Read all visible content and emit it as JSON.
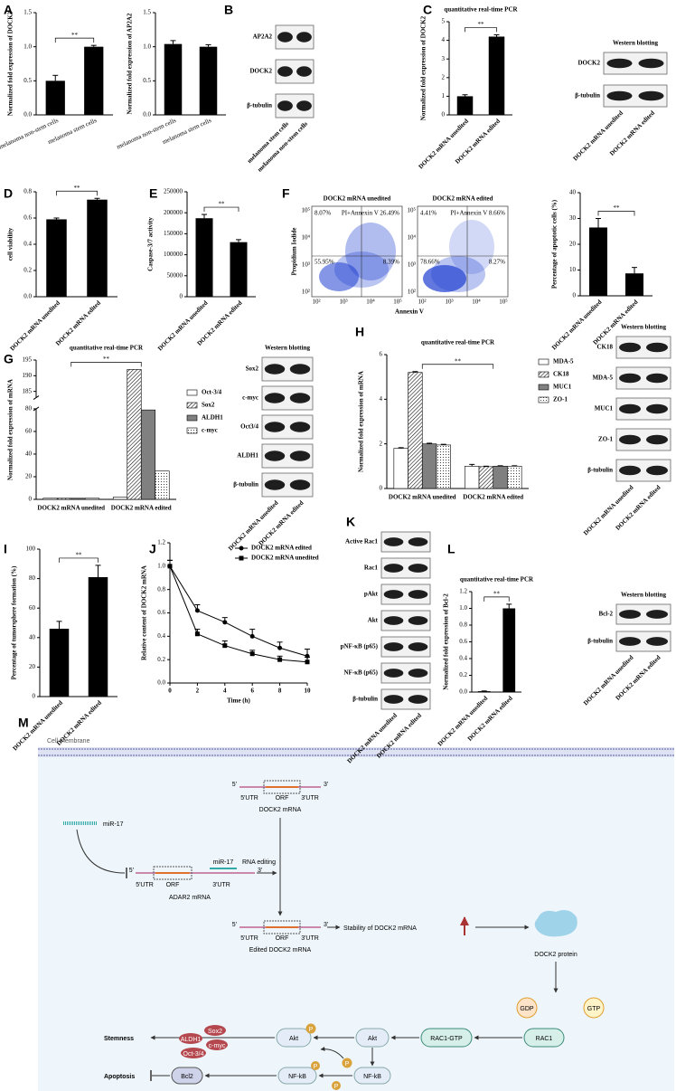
{
  "panel_labels": [
    "A",
    "B",
    "C",
    "D",
    "E",
    "F",
    "G",
    "H",
    "I",
    "J",
    "K",
    "L",
    "M"
  ],
  "chart_data": [
    {
      "type": "bar",
      "ylabel": "Normalized fold expression of DOCK2",
      "categories": [
        "melanoma non-stem cells",
        "melanoma stem cells"
      ],
      "values": [
        0.5,
        1.0
      ],
      "errors": [
        0.08,
        0.02
      ],
      "color": "#000000",
      "ylim": [
        0,
        1.5
      ],
      "yticks": [
        {
          "value": 0,
          "label": "0.0"
        },
        0.5,
        {
          "value": 1,
          "label": "1.0"
        },
        1.5
      ],
      "significance": "**"
    },
    {
      "type": "bar",
      "ylabel": "Normalized fold expression of AP2A2",
      "categories": [
        "melanoma non-stem cells",
        "melanoma stem cells"
      ],
      "values": [
        1.04,
        1.0
      ],
      "errors": [
        0.05,
        0.03
      ],
      "color": "#000000",
      "ylim": [
        0,
        1.5
      ],
      "yticks": [
        {
          "value": 0,
          "label": "0.0"
        },
        0.5,
        {
          "value": 1,
          "label": "1.0"
        },
        1.5
      ]
    },
    {
      "type": "bar",
      "title": "quantitative real-time PCR",
      "ylabel": "Normalized fold expression of DOCK2",
      "categories": [
        "DOCK2 mRNA unedited",
        "DOCK2 mRNA edited"
      ],
      "values": [
        1.0,
        4.2
      ],
      "errors": [
        0.08,
        0.1
      ],
      "color": "#000000",
      "ylim": [
        0,
        5
      ],
      "yticks": [
        0,
        1,
        2,
        3,
        4,
        5
      ],
      "significance": "**"
    },
    {
      "type": "bar",
      "ylabel": "cell viability",
      "categories": [
        "DOCK2 mRNA unedited",
        "DOCK2 mRNA edited"
      ],
      "values": [
        0.59,
        0.74
      ],
      "errors": [
        0.01,
        0.01
      ],
      "color": "#000000",
      "ylim": [
        0,
        0.8
      ],
      "yticks": [
        {
          "value": 0,
          "label": "0.0"
        },
        0.2,
        0.4,
        0.6,
        0.8
      ],
      "significance": "**"
    },
    {
      "type": "bar",
      "ylabel": "Caspase-3/7 activity",
      "categories": [
        "DOCK2 mRNA unedited",
        "DOCK2 mRNA edited"
      ],
      "values": [
        187000,
        130000
      ],
      "errors": [
        9000,
        6000
      ],
      "color": "#000000",
      "ylim": [
        0,
        250000
      ],
      "yticks": [
        0,
        50000,
        100000,
        150000,
        200000,
        250000
      ],
      "significance": "**"
    },
    {
      "type": "bar",
      "ylabel": "Percentage of apoptotic cells (%)",
      "categories": [
        "DOCK2 mRNA unedited",
        "DOCK2 mRNA edited"
      ],
      "values": [
        26.5,
        8.7
      ],
      "errors": [
        3.5,
        2.3
      ],
      "color": "#000000",
      "ylim": [
        0,
        40
      ],
      "yticks": [
        0,
        10,
        20,
        30,
        40
      ],
      "significance": "**"
    },
    {
      "type": "grouped_bar",
      "title": "quantitative real-time PCR",
      "ylabel": "Normalized fold expression of mRNA",
      "categories": [
        "DOCK2 mRNA unedited",
        "DOCK2 mRNA edited"
      ],
      "series": [
        {
          "name": "Oct-3/4",
          "color": "#ffffff",
          "pattern": "none",
          "values": [
            1,
            2
          ]
        },
        {
          "name": "Sox2",
          "color": "#ffffff",
          "pattern": "hatch",
          "values": [
            1,
            192
          ]
        },
        {
          "name": "ALDH1",
          "color": "#808080",
          "pattern": "none",
          "values": [
            1,
            79
          ]
        },
        {
          "name": "c-myc",
          "color": "#ffffff",
          "pattern": "dots",
          "values": [
            1,
            25
          ]
        }
      ],
      "ylim": [
        0,
        195
      ],
      "ybreak": [
        80,
        183
      ],
      "yticks": [
        0,
        20,
        40,
        60,
        80,
        185,
        190,
        195
      ],
      "significance": "**"
    },
    {
      "type": "grouped_bar",
      "title": "quantitative real-time PCR",
      "ylabel": "Normalized fold expression of mRNA",
      "categories": [
        "DOCK2 mRNA unedited",
        "DOCK2 mRNA edited"
      ],
      "series": [
        {
          "name": "MDA-5",
          "color": "#ffffff",
          "pattern": "none",
          "values": [
            1.8,
            1.0
          ],
          "errors": [
            0.03,
            0.08
          ]
        },
        {
          "name": "CK18",
          "color": "#ffffff",
          "pattern": "hatch",
          "values": [
            5.2,
            0.98
          ],
          "errors": [
            0.04,
            0.02
          ]
        },
        {
          "name": "MUC1",
          "color": "#808080",
          "pattern": "none",
          "values": [
            2.0,
            1.0
          ],
          "errors": [
            0.03,
            0.02
          ]
        },
        {
          "name": "ZO-1",
          "color": "#ffffff",
          "pattern": "dots",
          "values": [
            1.95,
            1.0
          ],
          "errors": [
            0.03,
            0.02
          ]
        }
      ],
      "ylim": [
        0,
        6
      ],
      "yticks": [
        0,
        2,
        4,
        6
      ],
      "significance": "**"
    },
    {
      "type": "bar",
      "ylabel": "Percentage of tumorsphere formation (%)",
      "categories": [
        "DOCK2 mRNA unedited",
        "DOCK2 mRNA edited"
      ],
      "values": [
        46,
        81
      ],
      "errors": [
        5,
        8
      ],
      "color": "#000000",
      "ylim": [
        0,
        100
      ],
      "yticks": [
        0,
        20,
        40,
        60,
        80,
        100
      ],
      "significance": "**"
    },
    {
      "type": "line",
      "ylabel": "Relative content of DOCK2 mRNA",
      "xlabel": "Time (h)",
      "x": [
        0,
        2,
        4,
        6,
        8,
        10
      ],
      "legend": "upper right",
      "series": [
        {
          "name": "DOCK2 mRNA edited",
          "marker": "circle",
          "color": "#000000",
          "values": [
            1.0,
            0.62,
            0.52,
            0.4,
            0.3,
            0.23
          ],
          "errors": [
            0.05,
            0.05,
            0.04,
            0.06,
            0.05,
            0.06
          ]
        },
        {
          "name": "DOCK2 mRNA unedited",
          "marker": "square",
          "color": "#000000",
          "values": [
            1.0,
            0.42,
            0.32,
            0.25,
            0.2,
            0.18
          ],
          "errors": [
            0.05,
            0.04,
            0.04,
            0.03,
            0.03,
            0.04
          ]
        }
      ],
      "xlim": [
        0,
        10
      ],
      "xticks": [
        0,
        2,
        4,
        6,
        8,
        10
      ],
      "ylim": [
        0,
        1.2
      ],
      "yticks": [
        {
          "value": 0,
          "label": "0.0"
        },
        0.2,
        0.4,
        0.6,
        0.8,
        {
          "value": 1,
          "label": "1.0"
        },
        1.2
      ]
    },
    {
      "type": "bar",
      "title": "quantitative real-time PCR",
      "ylabel": "Normalized fold expression of Bcl-2",
      "categories": [
        "DOCK2 mRNA unedited",
        "DOCK2 mRNA edited"
      ],
      "values": [
        0.01,
        1.0
      ],
      "errors": [
        0.003,
        0.05
      ],
      "color": "#000000",
      "ylim": [
        0,
        1.2
      ],
      "yticks": [
        {
          "value": 0,
          "label": "0.0"
        },
        0.2,
        0.4,
        0.6,
        0.8,
        {
          "value": 1,
          "label": "1.0"
        },
        1.2
      ],
      "significance": "**"
    }
  ],
  "blots": [
    {
      "rows": [
        "AP2A2",
        "DOCK2",
        "β-tubulin"
      ],
      "columns": [
        "melanoma stem cells",
        "melanoma non-stem cells"
      ]
    },
    {
      "title": "Western blotting",
      "rows": [
        "DOCK2",
        "β-tubulin"
      ],
      "columns": [
        "DOCK2 mRNA unedited",
        "DOCK2 mRNA edited"
      ]
    },
    {
      "title": "Western blotting",
      "rows": [
        "Sox2",
        "c-myc",
        "Oct3/4",
        "ALDH1",
        "β-tubulin"
      ],
      "columns": [
        "DOCK2 mRNA unedited",
        "DOCK2 mRNA edited"
      ]
    },
    {
      "title": "Western blotting",
      "rows": [
        "CK18",
        "MDA-5",
        "MUC1",
        "ZO-1",
        "β-tubulin"
      ],
      "columns": [
        "DOCK2 mRNA unedited",
        "DOCK2 mRNA edited"
      ]
    },
    {
      "rows": [
        "Active Rac1",
        "Rac1",
        "pAkt",
        "Akt",
        "pNF-κB (p65)",
        "NF-κB (p65)",
        "β-tubulin"
      ],
      "columns": [
        "DOCK2 mRNA unedited",
        "DOCK2 mRNA edited"
      ]
    },
    {
      "title": "Western blotting",
      "rows": [
        "Bcl-2",
        "β-tubulin"
      ],
      "columns": [
        "DOCK2 mRNA unedited",
        "DOCK2 mRNA edited"
      ]
    }
  ],
  "flow_cytometry": {
    "ylabel": "Propidium Iodide",
    "xlabel": "Annexin V",
    "axis_ticks": [
      "10²",
      "10³",
      "10⁴",
      "10⁵"
    ],
    "plots": [
      {
        "title": "DOCK2 mRNA unedited",
        "quadrants": [
          "8.07%",
          "PI+Annexin V 26.49%",
          "55.95%",
          "8.39%"
        ]
      },
      {
        "title": "DOCK2 mRNA edited",
        "quadrants": [
          "4.41%",
          "PI+Annexin V 8.66%",
          "78.66%",
          "8.27%"
        ]
      }
    ]
  },
  "diagram": {
    "membrane": "Cell membrane",
    "mirna": "miR-17",
    "dock2_mrna": "DOCK2 mRNA",
    "adar2_mrna": "ADAR2 mRNA",
    "editing": "RNA editing",
    "edited_mrna": "Edited DOCK2 mRNA",
    "stability": "Stability of DOCK2 mRNA",
    "protein": "DOCK2 protein",
    "gdp": "GDP",
    "gtp": "GTP",
    "rac1": "RAC1",
    "rac1_gtp": "RAC1-GTP",
    "akt": "Akt",
    "p": "P",
    "stemness": "Stemness",
    "sox2": "Sox2",
    "aldh1": "ALDH1",
    "cmyc": "c-myc",
    "oct": "Oct-3/4",
    "apoptosis": "Apoptosis",
    "bcl2": "Bcl2",
    "nfkb": "NF-kB",
    "utr5": "5'UTR",
    "orf": "ORF",
    "utr3": "3'UTR",
    "end5": "5'",
    "end3": "3'"
  }
}
